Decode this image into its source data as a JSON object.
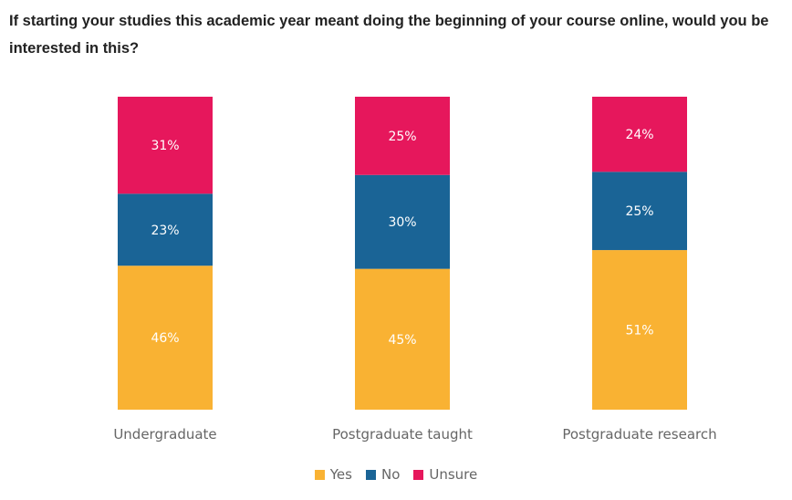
{
  "chart_data": {
    "type": "bar",
    "stacked": true,
    "percent_stacked": true,
    "title": "If starting your studies this academic year meant doing the beginning of your course online, would you be interested in this?",
    "xlabel": "",
    "ylabel": "",
    "ylim": [
      0,
      100
    ],
    "grid": false,
    "legend_position": "bottom",
    "categories": [
      "Undergraduate",
      "Postgraduate taught",
      "Postgraduate research"
    ],
    "series": [
      {
        "name": "Yes",
        "values": [
          46,
          45,
          51
        ],
        "labels": [
          "46%",
          "45%",
          "51%"
        ],
        "color": "#F9B233",
        "text_color": "#ffffff"
      },
      {
        "name": "No",
        "values": [
          23,
          30,
          25
        ],
        "labels": [
          "23%",
          "30%",
          "25%"
        ],
        "color": "#1A6496",
        "text_color": "#ffffff"
      },
      {
        "name": "Unsure",
        "values": [
          31,
          25,
          24
        ],
        "labels": [
          "31%",
          "25%",
          "24%"
        ],
        "color": "#E6175C",
        "text_color": "#ffffff"
      }
    ]
  }
}
